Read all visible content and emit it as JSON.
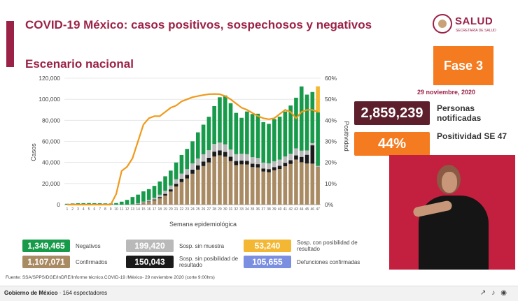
{
  "header": {
    "title": "COVID-19 México: casos positivos, sospechosos y negativos",
    "subtitle": "Escenario nacional",
    "logo_text": "SALUD",
    "logo_sub": "SECRETARÍA DE SALUD"
  },
  "fase": "Fase 3",
  "date": "29 noviembre, 2020",
  "kpis": {
    "notificadas_value": "2,859,239",
    "notificadas_label": "Personas notificadas",
    "positividad_value": "44%",
    "positividad_label": "Positividad SE 47"
  },
  "legend": {
    "negativos_value": "1,349,465",
    "negativos_label": "Negativos",
    "confirmados_value": "1,107,071",
    "confirmados_label": "Confirmados",
    "sin_muestra_value": "199,420",
    "sin_muestra_label": "Sosp. sin muestra",
    "sin_posibilidad_value": "150,043",
    "sin_posibilidad_label": "Sosp. sin posibilidad de resultado",
    "con_posibilidad_value": "53,240",
    "con_posibilidad_label": "Sosp. con posibilidad de resultado",
    "defunciones_value": "105,655",
    "defunciones_label": "Defunciones confirmadas"
  },
  "colors": {
    "confirmados": "#a88a63",
    "sin_posibilidad": "#1a1a1a",
    "sin_muestra": "#b9b9b9",
    "negativos": "#179a4a",
    "con_posibilidad": "#f3b733",
    "positividad": "#f09a1a",
    "defunciones": "#7b8fe0"
  },
  "source": "Fuente: SSA/SPPS/DGE/InDRE/Informe técnico.COVID-19 /México- 29 noviembre 2020 (corte 9:00hrs)",
  "footer": {
    "channel": "Gobierno de México",
    "viewers": "164 espectadores"
  },
  "chart_data": {
    "type": "bar",
    "stacked": true,
    "xlabel": "Semana epidemiológica",
    "ylabel": "Casos",
    "y2label": "Positividad",
    "ylim": [
      0,
      120000
    ],
    "y2lim": [
      0,
      60
    ],
    "yticks": [
      "0",
      "20,000",
      "40,000",
      "60,000",
      "80,000",
      "100,000",
      "120,000"
    ],
    "y2ticks": [
      "0%",
      "10%",
      "20%",
      "30%",
      "40%",
      "50%",
      "60%"
    ],
    "categories": [
      "1",
      "2",
      "3",
      "4",
      "5",
      "6",
      "7",
      "8",
      "9",
      "10",
      "11",
      "12",
      "13",
      "14",
      "15",
      "16",
      "17",
      "18",
      "19",
      "20",
      "21",
      "22",
      "23",
      "24",
      "25",
      "26",
      "27",
      "28",
      "29",
      "30",
      "31",
      "32",
      "33",
      "34",
      "35",
      "36",
      "37",
      "38",
      "39",
      "40",
      "41",
      "42",
      "43",
      "44",
      "45",
      "46",
      "47"
    ],
    "series": [
      {
        "name": "Confirmados",
        "values": [
          0,
          0,
          0,
          0,
          0,
          0,
          0,
          0,
          0,
          0,
          0,
          0,
          100,
          700,
          1700,
          2800,
          4200,
          6100,
          8600,
          12400,
          17200,
          21400,
          24800,
          29300,
          33200,
          36600,
          40100,
          45700,
          46800,
          45500,
          41300,
          37500,
          38200,
          38100,
          35600,
          35300,
          31400,
          30800,
          32600,
          33800,
          36400,
          38600,
          42800,
          40200,
          39100,
          38900,
          35800
        ]
      },
      {
        "name": "Sosp. sin posibilidad de resultado",
        "values": [
          0,
          0,
          0,
          0,
          0,
          0,
          0,
          0,
          0,
          0,
          0,
          0,
          0,
          100,
          200,
          400,
          700,
          1100,
          1600,
          2100,
          2600,
          3100,
          3400,
          3900,
          4100,
          4300,
          4400,
          4600,
          4700,
          4500,
          4200,
          3900,
          3700,
          3500,
          3300,
          3100,
          2900,
          2900,
          3000,
          3100,
          3300,
          3500,
          3900,
          5100,
          8200,
          17400,
          0
        ]
      },
      {
        "name": "Sosp. sin muestra",
        "values": [
          0,
          0,
          0,
          0,
          0,
          0,
          0,
          0,
          0,
          0,
          0,
          0,
          200,
          500,
          900,
          1200,
          1600,
          2200,
          2900,
          3600,
          4300,
          5000,
          5500,
          6000,
          6500,
          6900,
          7100,
          7300,
          7400,
          7200,
          6800,
          6500,
          6400,
          6300,
          6100,
          5900,
          5600,
          5500,
          5600,
          5800,
          6000,
          6300,
          6700,
          5900,
          4100,
          2100,
          1000
        ]
      },
      {
        "name": "Negativos",
        "values": [
          800,
          1100,
          1300,
          1400,
          1500,
          1400,
          1300,
          1200,
          1100,
          1500,
          2800,
          4500,
          6900,
          8200,
          9800,
          10300,
          11300,
          12600,
          13800,
          14200,
          15900,
          17600,
          19200,
          20900,
          24800,
          28100,
          31800,
          35900,
          43000,
          46400,
          44000,
          39200,
          34100,
          40500,
          41000,
          42000,
          38400,
          37500,
          40000,
          40800,
          42700,
          45700,
          48100,
          61000,
          53000,
          48500,
          50800
        ]
      },
      {
        "name": "Sosp. con posibilidad de resultado",
        "values": [
          0,
          0,
          0,
          0,
          0,
          0,
          0,
          0,
          0,
          0,
          0,
          0,
          0,
          0,
          0,
          0,
          0,
          0,
          0,
          0,
          0,
          0,
          0,
          0,
          0,
          0,
          0,
          0,
          0,
          0,
          0,
          0,
          0,
          0,
          0,
          0,
          0,
          0,
          0,
          0,
          0,
          0,
          0,
          0,
          0,
          0,
          24700
        ]
      }
    ],
    "line_series": {
      "name": "Positividad",
      "values": [
        0,
        0,
        0,
        0,
        0,
        0,
        0,
        0,
        0,
        5,
        16,
        18,
        22,
        30,
        38,
        41,
        42,
        42,
        44,
        46,
        47,
        49,
        50,
        51,
        51.5,
        52,
        52.4,
        52.5,
        52.4,
        51.5,
        50,
        48,
        46,
        45,
        43.5,
        42,
        41,
        40.5,
        41,
        43,
        45,
        44,
        41,
        44,
        45,
        45,
        44
      ]
    }
  }
}
